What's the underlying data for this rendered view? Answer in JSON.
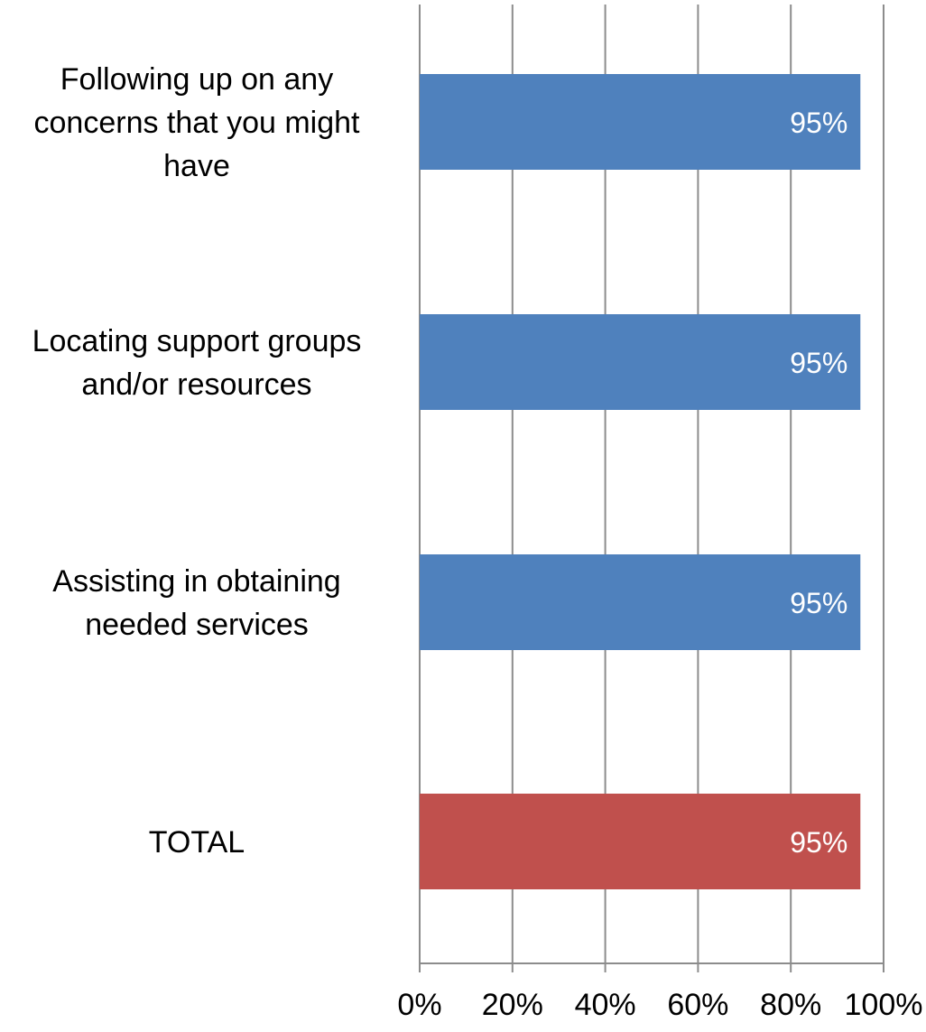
{
  "chart_data": {
    "type": "bar",
    "orientation": "horizontal",
    "categories": [
      "Following up on any concerns that you might have",
      "Locating support groups and/or resources",
      "Assisting in obtaining needed services",
      "TOTAL"
    ],
    "category_label_lines": [
      [
        "Following up on any",
        "concerns that you might",
        "have"
      ],
      [
        "Locating support groups",
        "and/or resources"
      ],
      [
        "Assisting in obtaining",
        "needed services"
      ],
      [
        "TOTAL"
      ]
    ],
    "values": [
      95,
      95,
      95,
      95
    ],
    "data_labels": [
      "95%",
      "95%",
      "95%",
      "95%"
    ],
    "bar_colors": [
      "#4F81BD",
      "#4F81BD",
      "#4F81BD",
      "#C0504D"
    ],
    "xlim": [
      0,
      100
    ],
    "x_ticks": [
      0,
      20,
      40,
      60,
      80,
      100
    ],
    "x_tick_labels": [
      "0%",
      "20%",
      "40%",
      "60%",
      "80%",
      "100%"
    ],
    "grid": true,
    "grid_color": "#8C8C8C",
    "legend": "none",
    "title": "",
    "xlabel": "",
    "ylabel": ""
  }
}
